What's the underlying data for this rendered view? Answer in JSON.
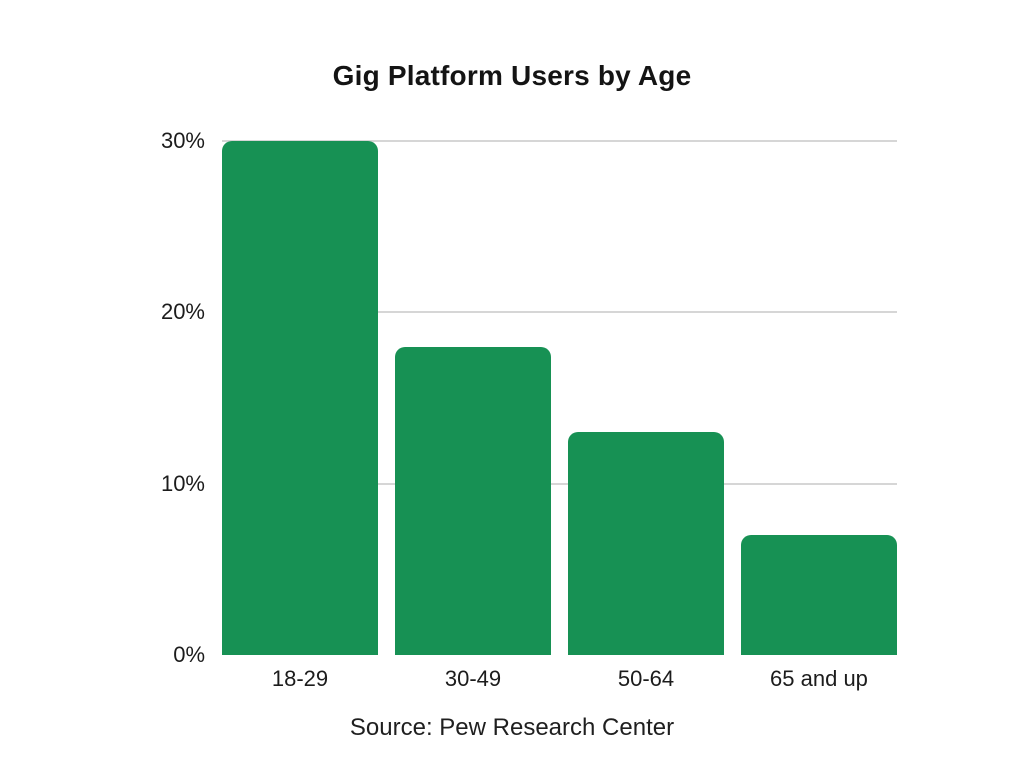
{
  "chart_data": {
    "type": "bar",
    "title": "Gig Platform Users by Age",
    "categories": [
      "18-29",
      "30-49",
      "50-64",
      "65 and up"
    ],
    "values": [
      30,
      18,
      13,
      7
    ],
    "unit": "percent",
    "xlabel": "",
    "ylabel": "",
    "ylim": [
      0,
      30
    ],
    "yticks": [
      {
        "value": 0,
        "label": "0%",
        "gridline": false
      },
      {
        "value": 10,
        "label": "10%",
        "gridline": true
      },
      {
        "value": 20,
        "label": "20%",
        "gridline": true
      },
      {
        "value": 30,
        "label": "30%",
        "gridline": true
      }
    ],
    "legend": "none",
    "grid": "horizontal-only",
    "axis_lines": "none",
    "source": "Source: Pew Research Center",
    "colors": {
      "bar": "#179154",
      "gridline": "#d6d6d6",
      "text": "#1c1c1c",
      "background": "#ffffff"
    }
  }
}
